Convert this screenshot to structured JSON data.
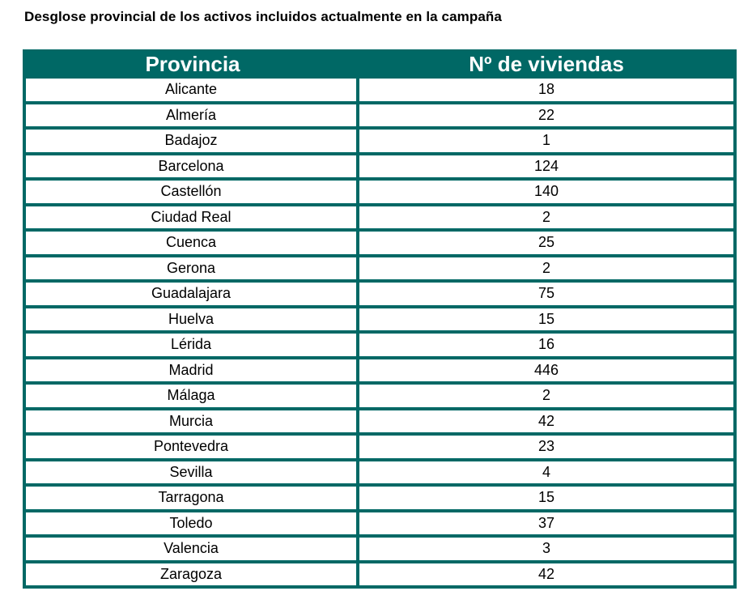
{
  "title": "Desglose provincial de los activos incluidos actualmente en la campaña",
  "table": {
    "headers": [
      "Provincia",
      "Nº de viviendas"
    ],
    "rows": [
      [
        "Alicante",
        "18"
      ],
      [
        "Almería",
        "22"
      ],
      [
        "Badajoz",
        "1"
      ],
      [
        "Barcelona",
        "124"
      ],
      [
        "Castellón",
        "140"
      ],
      [
        "Ciudad Real",
        "2"
      ],
      [
        "Cuenca",
        "25"
      ],
      [
        "Gerona",
        "2"
      ],
      [
        "Guadalajara",
        "75"
      ],
      [
        "Huelva",
        "15"
      ],
      [
        "Lérida",
        "16"
      ],
      [
        "Madrid",
        "446"
      ],
      [
        "Málaga",
        "2"
      ],
      [
        "Murcia",
        "42"
      ],
      [
        "Pontevedra",
        "23"
      ],
      [
        "Sevilla",
        "4"
      ],
      [
        "Tarragona",
        "15"
      ],
      [
        "Toledo",
        "37"
      ],
      [
        "Valencia",
        "3"
      ],
      [
        "Zaragoza",
        "42"
      ]
    ]
  },
  "colors": {
    "accent": "#006865"
  }
}
